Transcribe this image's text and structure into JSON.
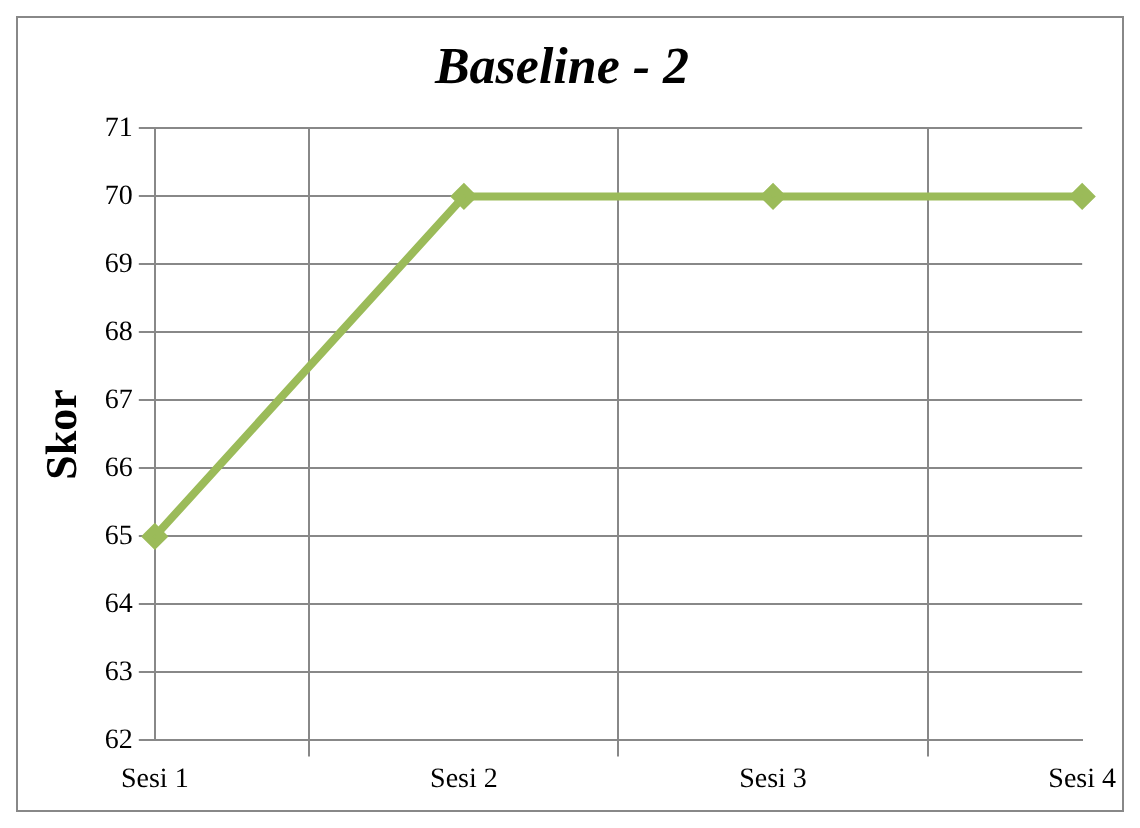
{
  "chart_data": {
    "type": "line",
    "title": "Baseline - 2",
    "ylabel": "Skor",
    "categories": [
      "Sesi 1",
      "Sesi 2",
      "Sesi 3",
      "Sesi 4"
    ],
    "series": [
      {
        "color": "#9bbb59",
        "values": [
          65,
          70,
          70,
          70
        ]
      }
    ],
    "ylim": [
      62,
      71
    ],
    "yticks": [
      62,
      63,
      64,
      65,
      66,
      67,
      68,
      69,
      70,
      71
    ],
    "grid": true,
    "legend": false,
    "marker": "diamond",
    "line_style": "solid"
  }
}
